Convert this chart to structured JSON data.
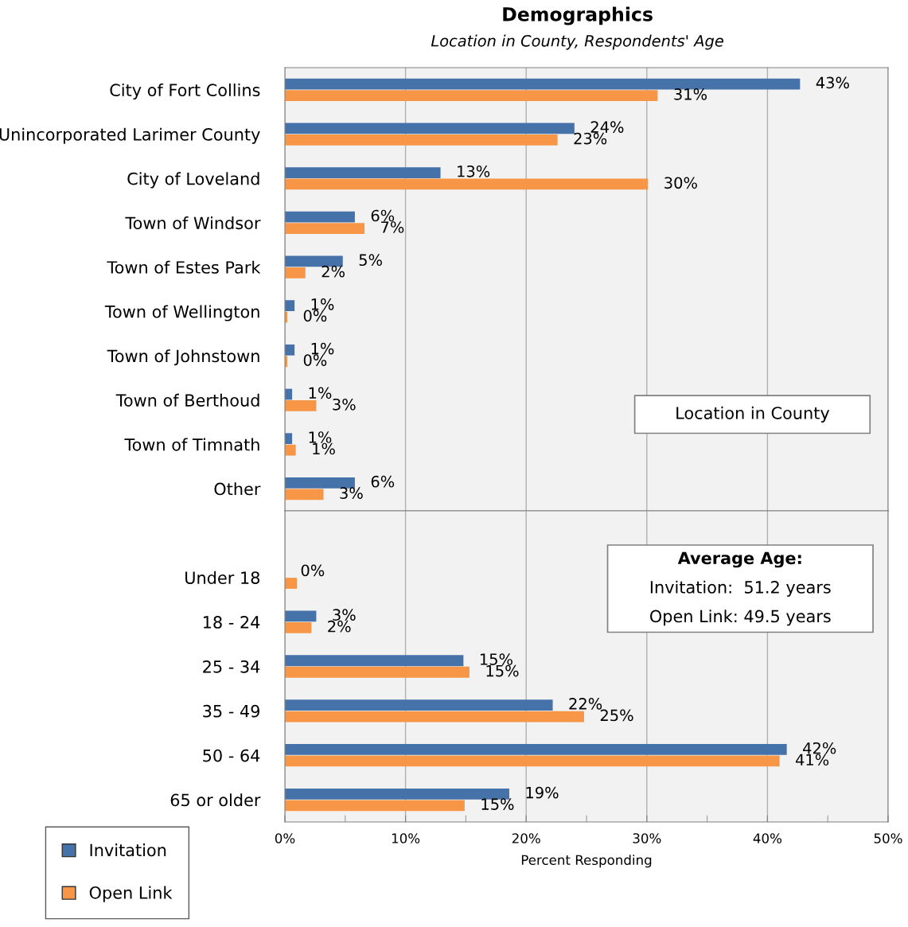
{
  "chart_data": [
    {
      "type": "bar",
      "orientation": "horizontal",
      "title": "Demographics",
      "subtitle": "Location in County, Respondents' Age",
      "categories": [
        "City of Fort Collins",
        "Unincorporated Larimer County",
        "City of Loveland",
        "Town of Windsor",
        "Town of Estes Park",
        "Town of Wellington",
        "Town of Johnstown",
        "Town of Berthoud",
        "Town of Timnath",
        "Other"
      ],
      "series": [
        {
          "name": "Invitation",
          "color": "#4672aa",
          "values": [
            42.7,
            24.0,
            12.9,
            5.8,
            4.8,
            0.8,
            0.8,
            0.6,
            0.6,
            5.8
          ],
          "value_labels": [
            "43%",
            "24%",
            "13%",
            "6%",
            "5%",
            "1%",
            "1%",
            "1%",
            "1%",
            "6%"
          ]
        },
        {
          "name": "Open Link",
          "color": "#f79646",
          "values": [
            30.9,
            22.6,
            30.1,
            6.6,
            1.7,
            0.2,
            0.2,
            2.6,
            0.9,
            3.2
          ],
          "value_labels": [
            "31%",
            "23%",
            "30%",
            "7%",
            "2%",
            "0%",
            "0%",
            "3%",
            "1%",
            "3%"
          ]
        }
      ],
      "xlim": [
        0,
        50
      ],
      "xticks": [
        0,
        10,
        20,
        30,
        40,
        50
      ],
      "tick_labels": "y",
      "grid": "x",
      "legend": "bottom left",
      "annotations": [
        "Location in County"
      ]
    },
    {
      "type": "bar",
      "orientation": "horizontal",
      "categories": [
        null,
        "Under 18",
        "18 - 24",
        "25 - 34",
        "35 - 49",
        "50 - 64",
        "65 or older"
      ],
      "series": [
        {
          "color": "#4672aa",
          "values": [
            null,
            0,
            2.6,
            14.8,
            22.2,
            41.6,
            18.6
          ],
          "value_labels": [
            null,
            "0%",
            "3%",
            "15%",
            "22%",
            "42%",
            "19%"
          ]
        },
        {
          "color": "#f79646",
          "values": [
            null,
            1.0,
            2.2,
            15.3,
            24.8,
            41.0,
            14.9
          ],
          "value_labels": [
            null,
            null,
            "2%",
            "15%",
            "25%",
            "41%",
            "15%"
          ]
        }
      ],
      "xlim": [
        0,
        50
      ],
      "xticks": [
        {
          "value": 0,
          "label": "0%"
        },
        {
          "value": 5,
          "label": null
        },
        {
          "value": 10,
          "label": "10%"
        },
        {
          "value": 15,
          "label": null
        },
        {
          "value": 20,
          "label": "20%"
        },
        {
          "value": 25,
          "label": null
        },
        {
          "value": 30,
          "label": "30%"
        },
        {
          "value": 35,
          "label": null
        },
        {
          "value": 40,
          "label": "40%"
        },
        {
          "value": 45,
          "label": null
        },
        {
          "value": 50,
          "label": "50%"
        }
      ],
      "xlabel": "Percent Responding",
      "grid": "x",
      "annotations": [
        "Average Age:",
        "Invitation:  51.2 years",
        "Open Link: 49.5 years"
      ]
    }
  ]
}
